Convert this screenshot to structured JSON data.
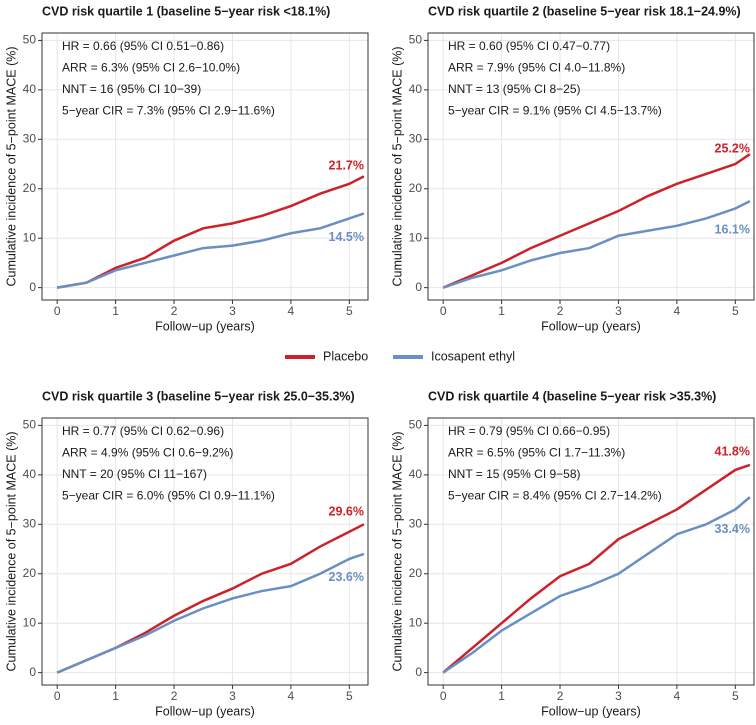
{
  "chart_data": [
    {
      "type": "line",
      "title": "CVD risk quartile 1 (baseline 5−year risk <18.1%)",
      "x_label": "Follow−up (years)",
      "y_label": "Cumulative incidence of 5−point MACE (%)",
      "annotations": [
        "HR = 0.66 (95% CI 0.51−0.86)",
        "ARR = 6.3% (95% CI 2.6−10.0%)",
        "NNT = 16 (95% CI 10−39)",
        "5−year CIR = 7.3% (95% CI 2.9−11.6%)"
      ],
      "x": [
        0,
        0.5,
        1,
        1.5,
        2,
        2.5,
        3,
        3.5,
        4,
        4.5,
        5,
        5.25
      ],
      "series": [
        {
          "color": "#cc2229",
          "values": [
            0,
            1,
            4,
            6,
            9.5,
            12,
            13,
            14.5,
            16.5,
            19,
            21,
            22.5
          ],
          "end_label": {
            "value": 21.7,
            "label": "21.7%"
          }
        },
        {
          "color": "#6a8fc4",
          "values": [
            0,
            1,
            3.5,
            5,
            6.5,
            8,
            8.5,
            9.5,
            11,
            12,
            14,
            15
          ],
          "end_label": {
            "value": 14.5,
            "label": "14.5%"
          }
        }
      ],
      "xlim": [
        -0.26,
        5.32
      ],
      "ylim": [
        -2.5,
        51.5
      ],
      "xticks": [
        0,
        1,
        2,
        3,
        4,
        5
      ],
      "yticks": [
        0,
        10,
        20,
        30,
        40,
        50
      ],
      "grid": true
    },
    {
      "type": "line",
      "title": "CVD risk quartile 2 (baseline 5−year risk 18.1−24.9%)",
      "x_label": "Follow−up (years)",
      "y_label": "Cumulative incidence of 5−point MACE (%)",
      "annotations": [
        "HR = 0.60 (95% CI 0.47−0.77)",
        "ARR = 7.9% (95% CI 4.0−11.8%)",
        "NNT = 13 (95% CI 8−25)",
        "5−year CIR = 9.1% (95% CI 4.5−13.7%)"
      ],
      "x": [
        0,
        0.5,
        1,
        1.5,
        2,
        2.5,
        3,
        3.5,
        4,
        4.5,
        5,
        5.25
      ],
      "series": [
        {
          "color": "#cc2229",
          "values": [
            0,
            2.5,
            5,
            8,
            10.5,
            13,
            15.5,
            18.5,
            21,
            23,
            25,
            27
          ],
          "end_label": {
            "value": 25.2,
            "label": "25.2%"
          }
        },
        {
          "color": "#6a8fc4",
          "values": [
            0,
            2,
            3.5,
            5.5,
            7,
            8,
            10.5,
            11.5,
            12.5,
            14,
            16,
            17.5
          ],
          "end_label": {
            "value": 16.1,
            "label": "16.1%"
          }
        }
      ],
      "xlim": [
        -0.26,
        5.32
      ],
      "ylim": [
        -2.5,
        51.5
      ],
      "xticks": [
        0,
        1,
        2,
        3,
        4,
        5
      ],
      "yticks": [
        0,
        10,
        20,
        30,
        40,
        50
      ],
      "grid": true
    },
    {
      "type": "line",
      "title": "CVD risk quartile 3 (baseline 5−year risk 25.0−35.3%)",
      "x_label": "Follow−up (years)",
      "y_label": "Cumulative incidence of 5−point MACE (%)",
      "annotations": [
        "HR = 0.77 (95% CI 0.62−0.96)",
        "ARR = 4.9% (95% CI 0.6−9.2%)",
        "NNT = 20 (95% CI 11−167)",
        "5−year CIR = 6.0% (95% CI 0.9−11.1%)"
      ],
      "x": [
        0,
        0.5,
        1,
        1.5,
        2,
        2.5,
        3,
        3.5,
        4,
        4.5,
        5,
        5.25
      ],
      "series": [
        {
          "color": "#cc2229",
          "values": [
            0,
            2.5,
            5,
            8,
            11.5,
            14.5,
            17,
            20,
            22,
            25.5,
            28.5,
            30
          ],
          "end_label": {
            "value": 29.6,
            "label": "29.6%"
          }
        },
        {
          "color": "#6a8fc4",
          "values": [
            0,
            2.5,
            5,
            7.5,
            10.5,
            13,
            15,
            16.5,
            17.5,
            20,
            23,
            24
          ],
          "end_label": {
            "value": 23.6,
            "label": "23.6%"
          }
        }
      ],
      "xlim": [
        -0.26,
        5.32
      ],
      "ylim": [
        -2.5,
        51.5
      ],
      "xticks": [
        0,
        1,
        2,
        3,
        4,
        5
      ],
      "yticks": [
        0,
        10,
        20,
        30,
        40,
        50
      ],
      "grid": true
    },
    {
      "type": "line",
      "title": "CVD risk quartile 4 (baseline 5−year risk >35.3%)",
      "x_label": "Follow−up (years)",
      "y_label": "Cumulative incidence of 5−point MACE (%)",
      "annotations": [
        "HR = 0.79 (95% CI 0.66−0.95)",
        "ARR = 6.5% (95% CI 1.7−11.3%)",
        "NNT = 15 (95% CI 9−58)",
        "5−year CIR = 8.4% (95% CI 2.7−14.2%)"
      ],
      "x": [
        0,
        0.5,
        1,
        1.5,
        2,
        2.5,
        3,
        3.5,
        4,
        4.5,
        5,
        5.25
      ],
      "series": [
        {
          "color": "#cc2229",
          "values": [
            0,
            5,
            10,
            15,
            19.5,
            22,
            27,
            30,
            33,
            37,
            41,
            42
          ],
          "end_label": {
            "value": 41.8,
            "label": "41.8%"
          }
        },
        {
          "color": "#6a8fc4",
          "values": [
            0,
            4,
            8.5,
            12,
            15.5,
            17.5,
            20,
            24,
            28,
            30,
            33,
            35.5
          ],
          "end_label": {
            "value": 33.4,
            "label": "33.4%"
          }
        }
      ],
      "xlim": [
        -0.26,
        5.32
      ],
      "ylim": [
        -2.5,
        51.5
      ],
      "xticks": [
        0,
        1,
        2,
        3,
        4,
        5
      ],
      "yticks": [
        0,
        10,
        20,
        30,
        40,
        50
      ],
      "grid": true
    }
  ],
  "legend": [
    {
      "name": "Placebo",
      "color": "#cc2229"
    },
    {
      "name": "Icosapent ethyl",
      "color": "#6a8fc4"
    }
  ]
}
